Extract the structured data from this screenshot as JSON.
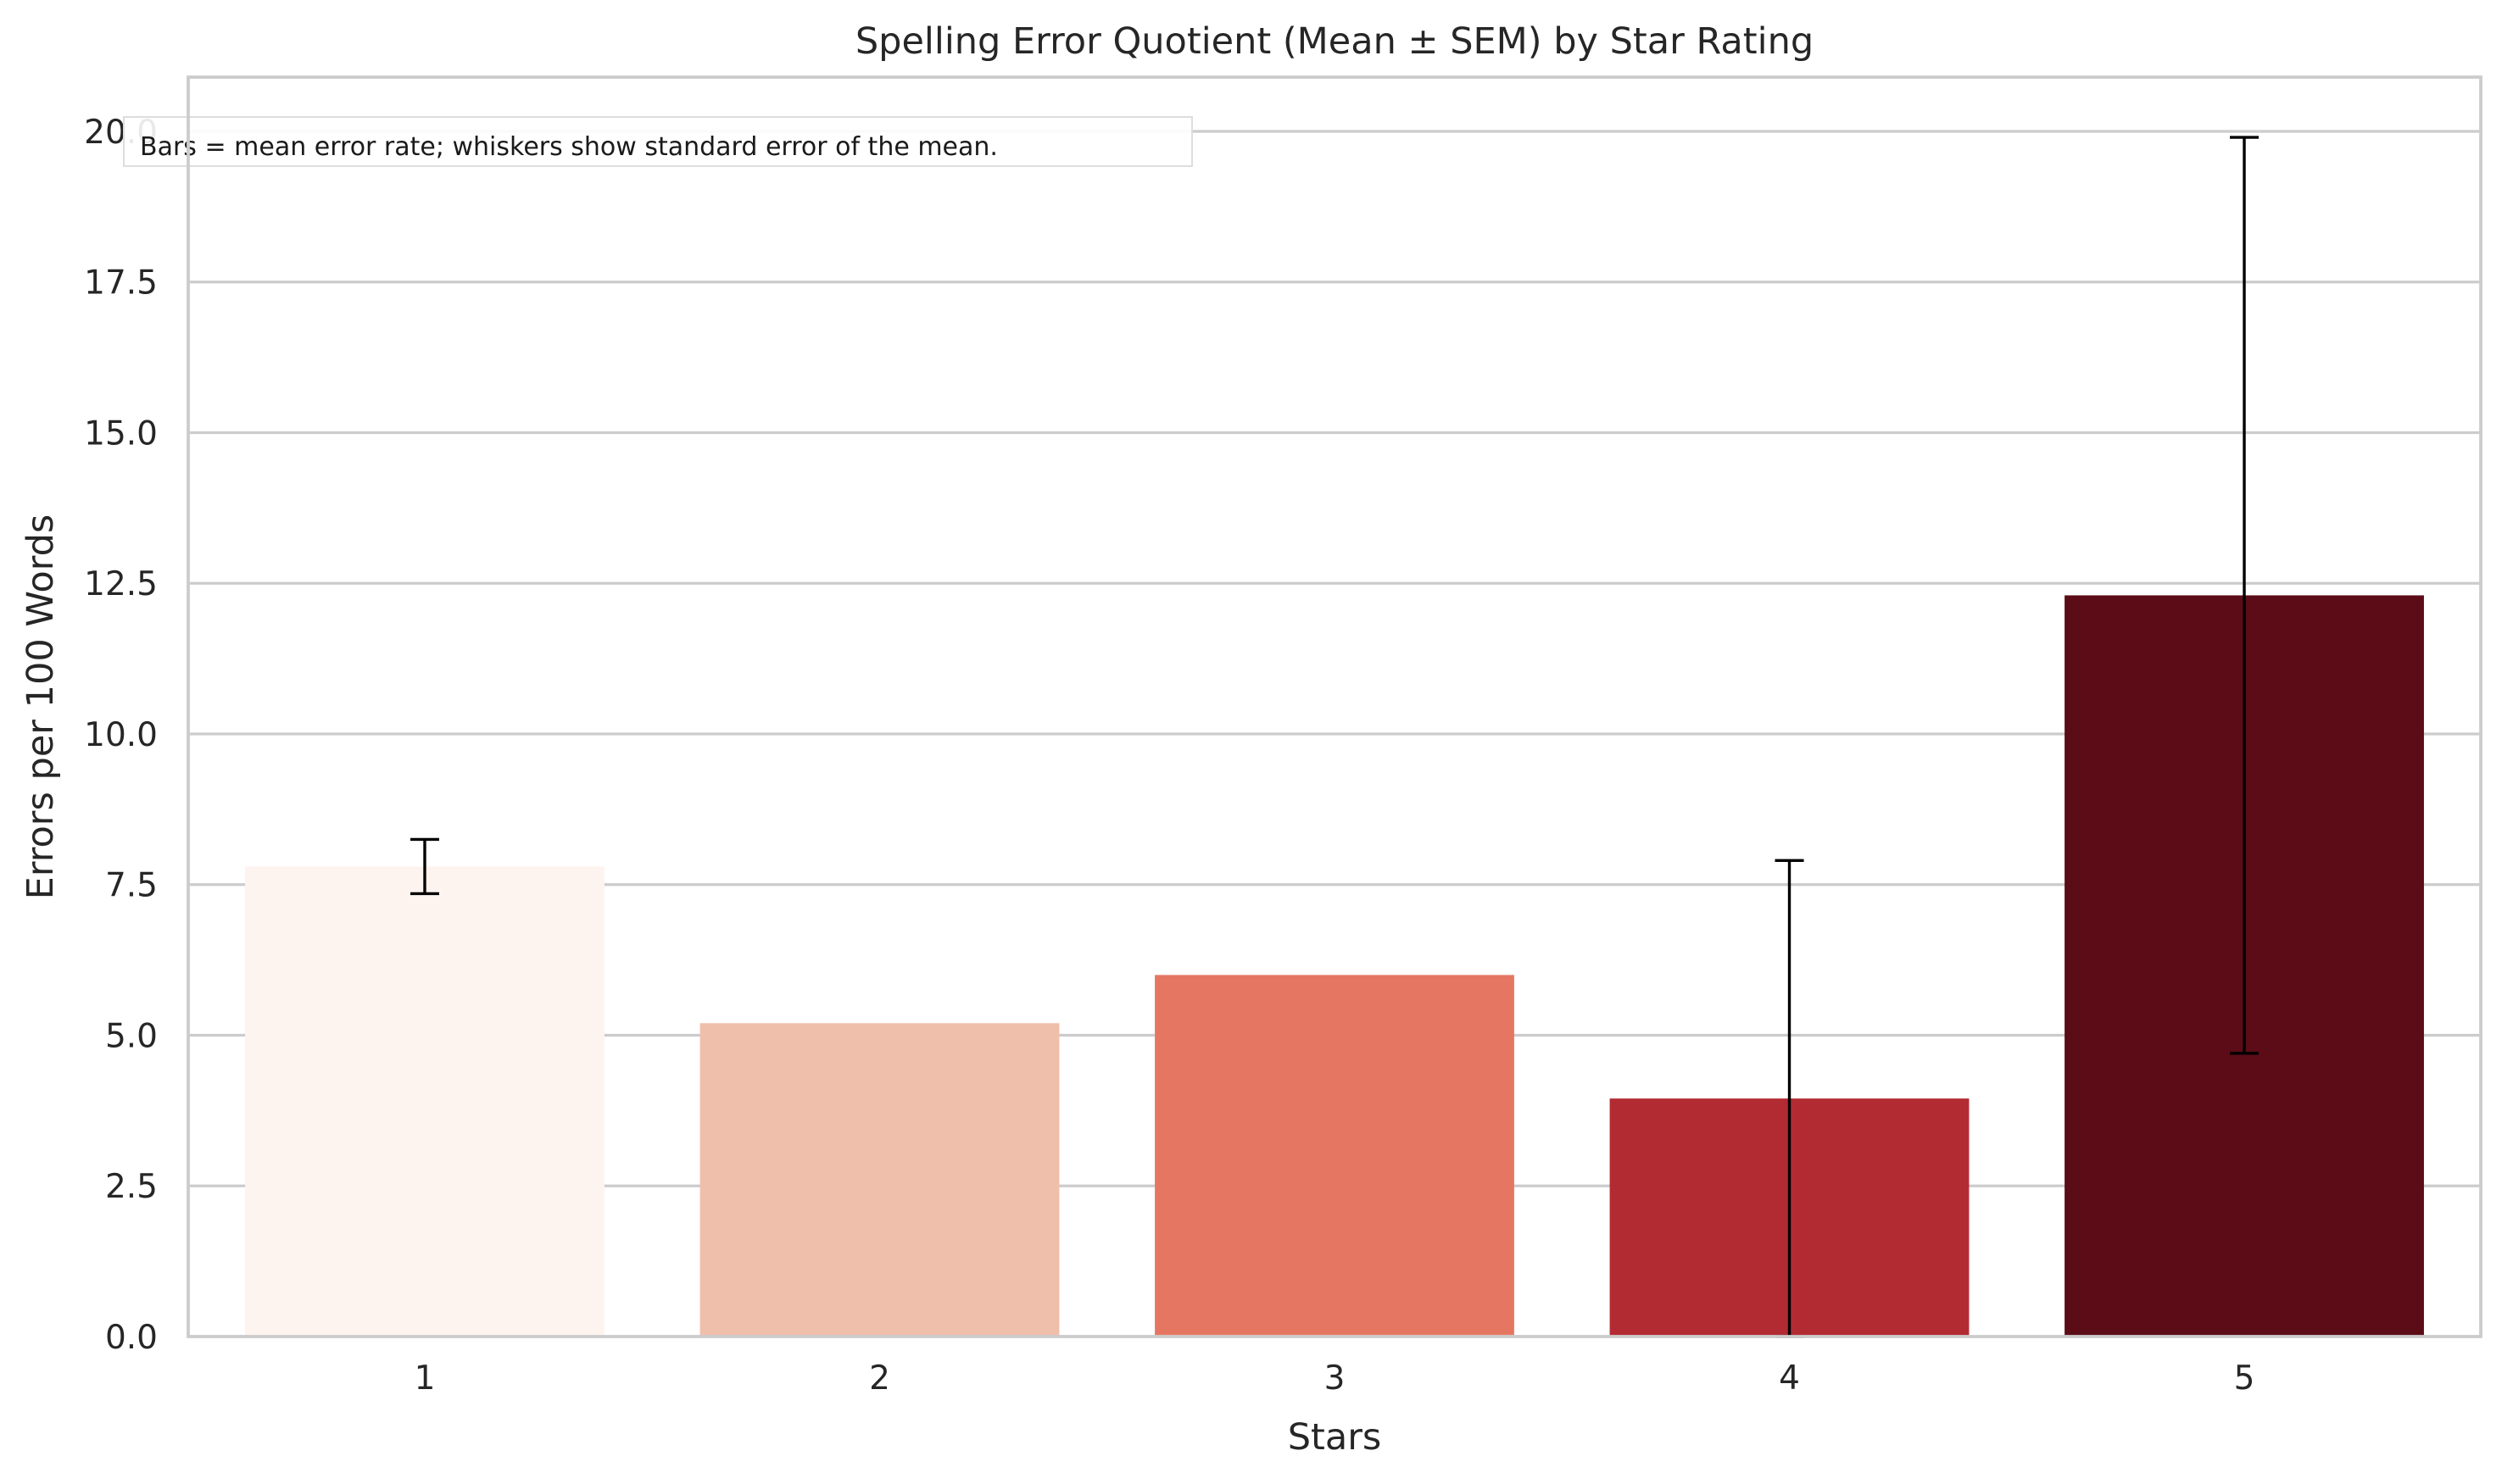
{
  "chart_data": {
    "type": "bar",
    "title": "Spelling Error Quotient (Mean ± SEM) by Star Rating",
    "xlabel": "Stars",
    "ylabel": "Errors per 100 Words",
    "categories": [
      "1",
      "2",
      "3",
      "4",
      "5"
    ],
    "values": [
      7.8,
      5.2,
      6.0,
      3.95,
      12.3
    ],
    "error": [
      0.45,
      0.0,
      0.0,
      3.95,
      7.6
    ],
    "colors": [
      "#fdf4f0",
      "#f0bfac",
      "#e57762",
      "#b32b32",
      "#5c0c17"
    ],
    "ylim": [
      0,
      20.9
    ],
    "yticks": [
      "0.0",
      "2.5",
      "5.0",
      "7.5",
      "10.0",
      "12.5",
      "15.0",
      "17.5",
      "20.0"
    ],
    "grid": "horizontal",
    "annotation": "Bars = mean error rate; whiskers show standard error of the mean."
  }
}
